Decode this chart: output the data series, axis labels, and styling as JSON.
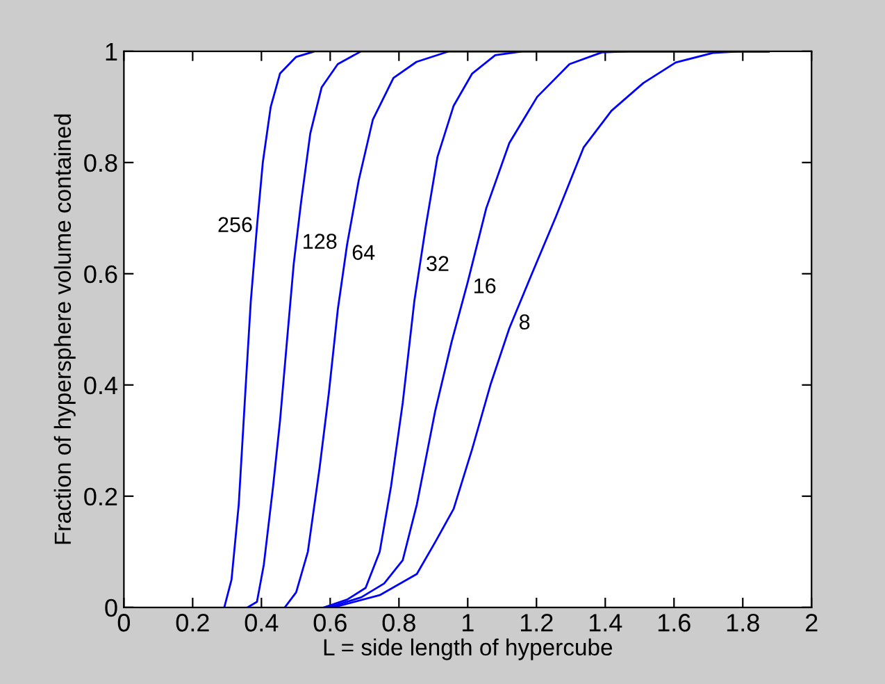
{
  "chart_data": {
    "type": "line",
    "xlabel": "L = side length of hypercube",
    "ylabel": "Fraction of hypersphere volume contained",
    "xlim": [
      0,
      2
    ],
    "ylim": [
      0,
      1
    ],
    "xticks": [
      0,
      0.2,
      0.4,
      0.6,
      0.8,
      1,
      1.2,
      1.4,
      1.6,
      1.8,
      2
    ],
    "yticks": [
      0,
      0.2,
      0.4,
      0.6,
      0.8,
      1
    ],
    "grid": false,
    "legend": false,
    "series": [
      {
        "name": "256",
        "color": "#0000ff",
        "x": [
          0.292,
          0.313,
          0.334,
          0.353,
          0.369,
          0.387,
          0.404,
          0.427,
          0.454,
          0.501,
          0.555,
          1.875
        ],
        "values": [
          0,
          0.05,
          0.185,
          0.385,
          0.55,
          0.685,
          0.8,
          0.9,
          0.96,
          0.99,
          1,
          1
        ]
      },
      {
        "name": "128",
        "color": "#0000ff",
        "x": [
          0.36,
          0.387,
          0.407,
          0.434,
          0.454,
          0.474,
          0.494,
          0.515,
          0.542,
          0.575,
          0.622,
          0.69,
          1.875
        ],
        "values": [
          0,
          0.01,
          0.077,
          0.218,
          0.335,
          0.477,
          0.618,
          0.727,
          0.852,
          0.935,
          0.977,
          1,
          1
        ]
      },
      {
        "name": "64",
        "color": "#0000ff",
        "x": [
          0.468,
          0.501,
          0.535,
          0.569,
          0.596,
          0.622,
          0.649,
          0.683,
          0.724,
          0.784,
          0.851,
          0.946,
          1.875
        ],
        "values": [
          0,
          0.027,
          0.1,
          0.25,
          0.385,
          0.535,
          0.652,
          0.768,
          0.877,
          0.952,
          0.981,
          1,
          1
        ]
      },
      {
        "name": "32",
        "color": "#0000ff",
        "x": [
          0.582,
          0.649,
          0.703,
          0.744,
          0.777,
          0.811,
          0.845,
          0.878,
          0.912,
          0.959,
          1.013,
          1.08,
          1.16,
          1.875
        ],
        "values": [
          0,
          0.014,
          0.035,
          0.1,
          0.218,
          0.368,
          0.552,
          0.685,
          0.81,
          0.902,
          0.96,
          0.993,
          1,
          1
        ]
      },
      {
        "name": "16",
        "color": "#0000ff",
        "x": [
          0.596,
          0.69,
          0.757,
          0.811,
          0.852,
          0.905,
          0.953,
          1.0,
          1.054,
          1.121,
          1.202,
          1.296,
          1.39,
          1.47,
          1.875
        ],
        "values": [
          0,
          0.018,
          0.043,
          0.085,
          0.185,
          0.352,
          0.477,
          0.585,
          0.718,
          0.835,
          0.918,
          0.977,
          0.998,
          1,
          1
        ]
      },
      {
        "name": "8",
        "color": "#0000ff",
        "x": [
          0.609,
          0.744,
          0.852,
          0.906,
          0.959,
          1.013,
          1.067,
          1.121,
          1.188,
          1.256,
          1.337,
          1.418,
          1.511,
          1.605,
          1.713,
          1.794,
          1.875
        ],
        "values": [
          0,
          0.022,
          0.06,
          0.118,
          0.177,
          0.285,
          0.402,
          0.502,
          0.602,
          0.702,
          0.827,
          0.893,
          0.943,
          0.98,
          0.997,
          1,
          1
        ]
      }
    ]
  }
}
